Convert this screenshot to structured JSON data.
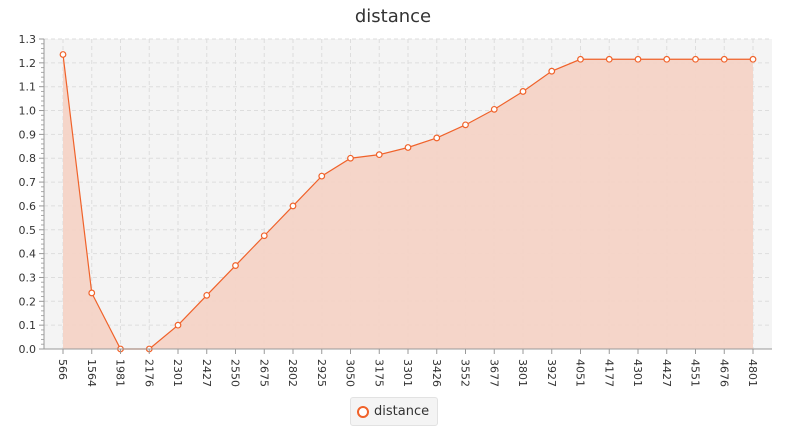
{
  "chart_data": {
    "type": "area",
    "title": "distance",
    "xlabel": "",
    "ylabel": "",
    "categories": [
      "566",
      "1564",
      "1981",
      "2176",
      "2301",
      "2427",
      "2550",
      "2675",
      "2802",
      "2925",
      "3050",
      "3175",
      "3301",
      "3426",
      "3552",
      "3677",
      "3801",
      "3927",
      "4051",
      "4177",
      "4301",
      "4427",
      "4551",
      "4676",
      "4801"
    ],
    "series": [
      {
        "name": "distance",
        "values": [
          1.235,
          0.235,
          0.0,
          0.0,
          0.1,
          0.225,
          0.35,
          0.475,
          0.6,
          0.725,
          0.8,
          0.815,
          0.845,
          0.885,
          0.94,
          1.005,
          1.08,
          1.165,
          1.215,
          1.215,
          1.215,
          1.215,
          1.215,
          1.215,
          1.215
        ]
      }
    ],
    "ylim": [
      0,
      1.3
    ],
    "yticks": [
      "0.0",
      "0.1",
      "0.2",
      "0.3",
      "0.4",
      "0.5",
      "0.6",
      "0.7",
      "0.8",
      "0.9",
      "1.0",
      "1.1",
      "1.2",
      "1.3"
    ],
    "grid": true,
    "legend_position": "bottom-center",
    "colors": {
      "line": "#f0622a",
      "fill": "#f4d3c6",
      "plot_background": "#f4f4f4",
      "grid": "#dddddd"
    }
  }
}
